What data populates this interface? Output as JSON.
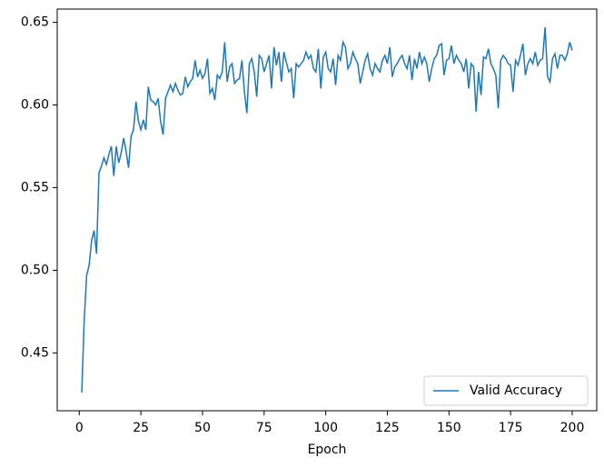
{
  "chart_data": {
    "type": "line",
    "xlabel": "Epoch",
    "x": [
      1,
      2,
      3,
      4,
      5,
      6,
      7,
      8,
      9,
      10,
      11,
      12,
      13,
      14,
      15,
      16,
      17,
      18,
      19,
      20,
      21,
      22,
      23,
      24,
      25,
      26,
      27,
      28,
      29,
      30,
      31,
      32,
      33,
      34,
      35,
      36,
      37,
      38,
      39,
      40,
      41,
      42,
      43,
      44,
      45,
      46,
      47,
      48,
      49,
      50,
      51,
      52,
      53,
      54,
      55,
      56,
      57,
      58,
      59,
      60,
      61,
      62,
      63,
      64,
      65,
      66,
      67,
      68,
      69,
      70,
      71,
      72,
      73,
      74,
      75,
      76,
      77,
      78,
      79,
      80,
      81,
      82,
      83,
      84,
      85,
      86,
      87,
      88,
      89,
      90,
      91,
      92,
      93,
      94,
      95,
      96,
      97,
      98,
      99,
      100,
      101,
      102,
      103,
      104,
      105,
      106,
      107,
      108,
      109,
      110,
      111,
      112,
      113,
      114,
      115,
      116,
      117,
      118,
      119,
      120,
      121,
      122,
      123,
      124,
      125,
      126,
      127,
      128,
      129,
      130,
      131,
      132,
      133,
      134,
      135,
      136,
      137,
      138,
      139,
      140,
      141,
      142,
      143,
      144,
      145,
      146,
      147,
      148,
      149,
      150,
      151,
      152,
      153,
      154,
      155,
      156,
      157,
      158,
      159,
      160,
      161,
      162,
      163,
      164,
      165,
      166,
      167,
      168,
      169,
      170,
      171,
      172,
      173,
      174,
      175,
      176,
      177,
      178,
      179,
      180,
      181,
      182,
      183,
      184,
      185,
      186,
      187,
      188,
      189,
      190,
      191,
      192,
      193,
      194,
      195,
      196,
      197,
      198,
      199,
      200
    ],
    "series": [
      {
        "name": "Valid Accuracy",
        "color": "#1f77b4",
        "values": [
          0.426,
          0.47,
          0.497,
          0.503,
          0.518,
          0.524,
          0.51,
          0.559,
          0.563,
          0.568,
          0.564,
          0.57,
          0.575,
          0.557,
          0.575,
          0.565,
          0.571,
          0.58,
          0.572,
          0.562,
          0.581,
          0.585,
          0.602,
          0.59,
          0.585,
          0.591,
          0.585,
          0.611,
          0.603,
          0.602,
          0.6,
          0.604,
          0.59,
          0.582,
          0.604,
          0.608,
          0.612,
          0.608,
          0.613,
          0.609,
          0.606,
          0.607,
          0.617,
          0.611,
          0.614,
          0.616,
          0.627,
          0.617,
          0.621,
          0.616,
          0.619,
          0.628,
          0.607,
          0.61,
          0.603,
          0.618,
          0.616,
          0.62,
          0.638,
          0.614,
          0.623,
          0.625,
          0.613,
          0.615,
          0.616,
          0.627,
          0.608,
          0.595,
          0.625,
          0.628,
          0.62,
          0.605,
          0.63,
          0.628,
          0.62,
          0.625,
          0.63,
          0.61,
          0.635,
          0.624,
          0.632,
          0.614,
          0.632,
          0.626,
          0.62,
          0.622,
          0.604,
          0.625,
          0.623,
          0.625,
          0.627,
          0.632,
          0.628,
          0.63,
          0.622,
          0.62,
          0.634,
          0.61,
          0.629,
          0.632,
          0.622,
          0.62,
          0.628,
          0.612,
          0.63,
          0.627,
          0.638,
          0.635,
          0.622,
          0.625,
          0.632,
          0.628,
          0.625,
          0.613,
          0.62,
          0.627,
          0.631,
          0.622,
          0.618,
          0.625,
          0.622,
          0.62,
          0.627,
          0.63,
          0.625,
          0.635,
          0.617,
          0.623,
          0.625,
          0.628,
          0.63,
          0.625,
          0.622,
          0.63,
          0.615,
          0.628,
          0.622,
          0.632,
          0.625,
          0.629,
          0.625,
          0.614,
          0.622,
          0.628,
          0.63,
          0.636,
          0.637,
          0.618,
          0.627,
          0.628,
          0.636,
          0.625,
          0.63,
          0.627,
          0.625,
          0.62,
          0.628,
          0.61,
          0.625,
          0.623,
          0.596,
          0.62,
          0.606,
          0.629,
          0.628,
          0.634,
          0.625,
          0.622,
          0.618,
          0.598,
          0.627,
          0.63,
          0.628,
          0.625,
          0.624,
          0.608,
          0.627,
          0.624,
          0.63,
          0.637,
          0.618,
          0.625,
          0.628,
          0.625,
          0.632,
          0.624,
          0.627,
          0.628,
          0.647,
          0.617,
          0.614,
          0.628,
          0.631,
          0.622,
          0.63,
          0.63,
          0.627,
          0.631,
          0.638,
          0.633
        ]
      }
    ],
    "xlim": [
      -8.95,
      209.95
    ],
    "xticks": [
      0,
      25,
      50,
      75,
      100,
      125,
      150,
      175,
      200
    ],
    "ylim": [
      0.415,
      0.658
    ],
    "yticks": [
      0.45,
      {
        "value": 0.5,
        "label": "0.50"
      },
      0.55,
      {
        "value": 0.6,
        "label": "0.60"
      },
      0.65
    ],
    "legend": "lower right"
  }
}
